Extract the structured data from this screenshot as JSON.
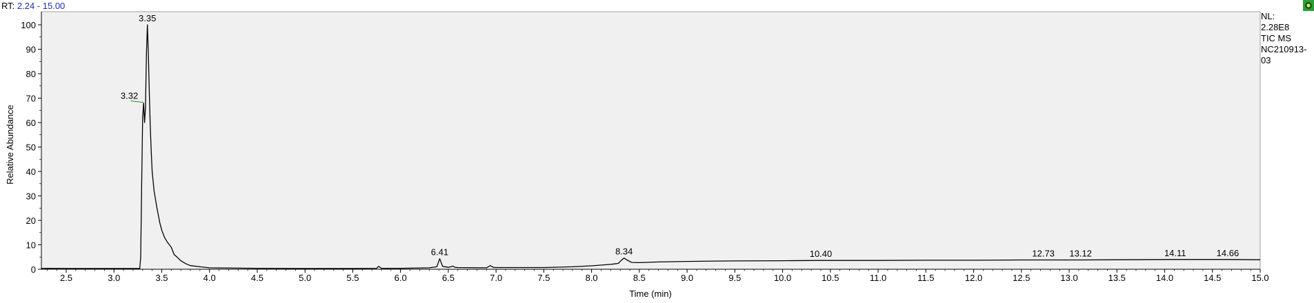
{
  "header": {
    "range_label": "RT:",
    "range_value": "2.24 - 15.00"
  },
  "side_info": {
    "nl_label": "NL:",
    "nl_value": "2.28E8",
    "scan_label": "TIC  MS",
    "sample_line1": "NC210913-",
    "sample_line2": "03"
  },
  "icons": {
    "corner": "green-status-icon"
  },
  "colors": {
    "plot_bg": "#f0f0f0",
    "trace": "#000000",
    "range_value": "#1f2fa8",
    "annotation_tick": "#2e8b2e"
  },
  "chart_data": {
    "type": "line",
    "title": "",
    "xlabel": "Time (min)",
    "ylabel": "Relative Abundance",
    "xlim": [
      2.24,
      15.0
    ],
    "ylim": [
      0,
      100
    ],
    "x_ticks": [
      "2.5",
      "3.0",
      "3.5",
      "4.0",
      "4.5",
      "5.0",
      "5.5",
      "6.0",
      "6.5",
      "7.0",
      "7.5",
      "8.0",
      "8.5",
      "9.0",
      "9.5",
      "10.0",
      "10.5",
      "11.0",
      "11.5",
      "12.0",
      "12.5",
      "13.0",
      "13.5",
      "14.0",
      "14.5",
      "15.0"
    ],
    "y_ticks": [
      "0",
      "10",
      "20",
      "30",
      "40",
      "50",
      "60",
      "70",
      "80",
      "90",
      "100"
    ],
    "grid": false,
    "series": [
      {
        "x": [
          2.24,
          2.3,
          2.6,
          2.9,
          3.2,
          3.27,
          3.28,
          3.29,
          3.3,
          3.31,
          3.32,
          3.33,
          3.34,
          3.35,
          3.36,
          3.37,
          3.38,
          3.39,
          3.4,
          3.42,
          3.45,
          3.48,
          3.5,
          3.53,
          3.56,
          3.6,
          3.63,
          3.66,
          3.7,
          3.75,
          3.8,
          3.9,
          4.0,
          4.5,
          5.0,
          5.5,
          5.75,
          5.77,
          5.8,
          6.0,
          6.3,
          6.38,
          6.41,
          6.44,
          6.5,
          6.55,
          6.57,
          6.6,
          6.9,
          6.94,
          6.97,
          7.0,
          7.5,
          7.8,
          8.0,
          8.2,
          8.28,
          8.31,
          8.34,
          8.37,
          8.42,
          8.5,
          8.7,
          9.0,
          9.5,
          10.0,
          10.4,
          11.0,
          11.5,
          12.0,
          12.5,
          12.73,
          13.12,
          13.5,
          14.11,
          14.66,
          15.0
        ],
        "y": [
          0.3,
          0.4,
          0.3,
          0.3,
          0.3,
          0.3,
          5,
          35,
          62,
          68,
          60,
          66,
          88,
          100,
          88,
          72,
          58,
          48,
          40,
          32,
          25,
          19,
          16,
          13,
          11,
          9,
          6,
          5,
          3.5,
          2.3,
          1.5,
          1,
          0.6,
          0.4,
          0.3,
          0.3,
          0.4,
          1.2,
          0.4,
          0.4,
          0.6,
          1,
          4.3,
          1.2,
          0.8,
          1.3,
          0.8,
          0.7,
          0.6,
          1.5,
          0.8,
          0.7,
          0.7,
          1,
          1.4,
          2,
          2.4,
          3.6,
          4.6,
          3.8,
          2.8,
          2.7,
          3,
          3.2,
          3.4,
          3.5,
          3.6,
          3.6,
          3.7,
          3.7,
          3.8,
          3.8,
          3.8,
          3.9,
          4,
          4,
          3.9
        ]
      }
    ],
    "peak_labels": [
      {
        "text": "3.35",
        "x": 3.35,
        "y": 100
      },
      {
        "text": "3.32",
        "x": 3.32,
        "y": 68
      },
      {
        "text": "6.41",
        "x": 6.41,
        "y": 4.3
      },
      {
        "text": "8.34",
        "x": 8.34,
        "y": 4.6
      },
      {
        "text": "10.40",
        "x": 10.4,
        "y": 3.6
      },
      {
        "text": "12.73",
        "x": 12.73,
        "y": 3.8
      },
      {
        "text": "13.12",
        "x": 13.12,
        "y": 3.8
      },
      {
        "text": "14.11",
        "x": 14.11,
        "y": 4
      },
      {
        "text": "14.66",
        "x": 14.66,
        "y": 4
      }
    ]
  }
}
